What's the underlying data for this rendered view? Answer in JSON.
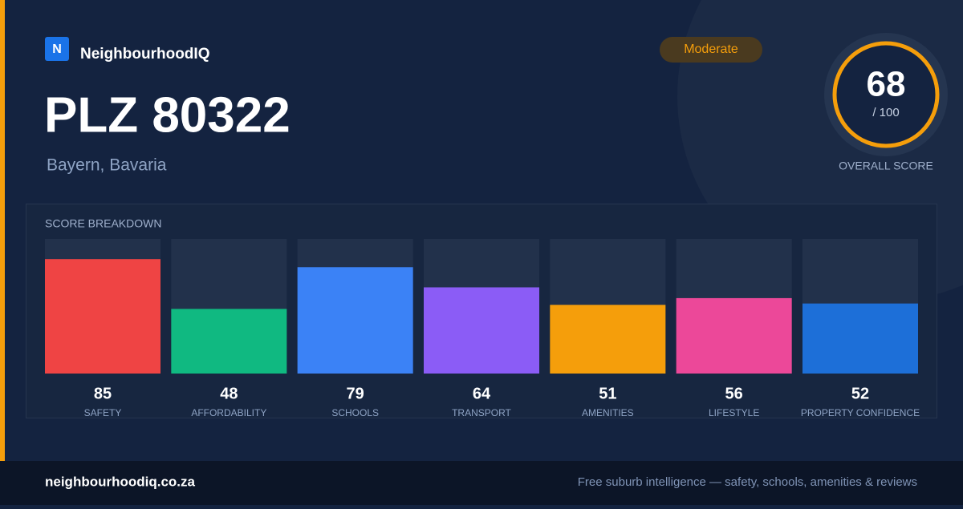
{
  "brand": {
    "logo_letter": "N",
    "name": "NeighbourhoodIQ"
  },
  "header": {
    "title": "PLZ 80322",
    "subtitle": "Bayern, Bavaria",
    "badge": "Moderate"
  },
  "score": {
    "value": 68,
    "max_label": "/ 100",
    "label": "OVERALL SCORE"
  },
  "chart_data": {
    "type": "bar",
    "title": "SCORE BREAKDOWN",
    "categories": [
      "SAFETY",
      "AFFORDABILITY",
      "SCHOOLS",
      "TRANSPORT",
      "AMENITIES",
      "LIFESTYLE",
      "PROPERTY CONFIDENCE"
    ],
    "values": [
      85,
      48,
      79,
      64,
      51,
      56,
      52
    ],
    "colors": [
      "#ef4444",
      "#10b981",
      "#3b82f6",
      "#8b5cf6",
      "#f59e0b",
      "#ec4899",
      "#1d6fd8"
    ],
    "ylim": [
      0,
      100
    ]
  },
  "footer": {
    "site": "neighbourhoodiq.co.za",
    "tagline": "Free suburb intelligence — safety, schools, amenities & reviews"
  }
}
